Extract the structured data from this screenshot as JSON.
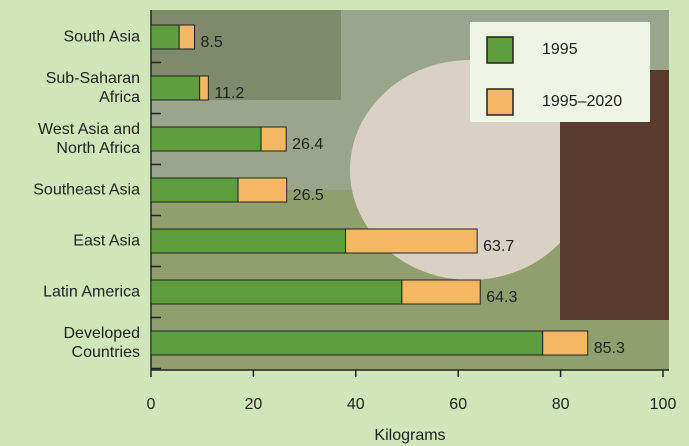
{
  "chart_data": {
    "type": "stacked-barh",
    "categories": [
      "South Asia",
      "Sub-Saharan\nAfrica",
      "West Asia and\nNorth Africa",
      "Southeast Asia",
      "East Asia",
      "Latin America",
      "Developed\nCountries"
    ],
    "series": [
      {
        "name": "1995",
        "color": "#5e9e3c",
        "values": [
          5.5,
          9.5,
          21.5,
          17,
          38,
          49,
          76.5
        ]
      },
      {
        "name": "1995–2020",
        "color": "#f4b865",
        "values": [
          3.0,
          1.7,
          4.9,
          9.5,
          25.7,
          15.3,
          8.8
        ]
      }
    ],
    "totals": [
      8.5,
      11.2,
      26.4,
      26.5,
      63.7,
      64.3,
      85.3
    ],
    "xlabel": "Kilograms",
    "xlim": [
      0,
      100
    ],
    "xticks": [
      0,
      20,
      40,
      60,
      80,
      100
    ],
    "grid": false
  }
}
